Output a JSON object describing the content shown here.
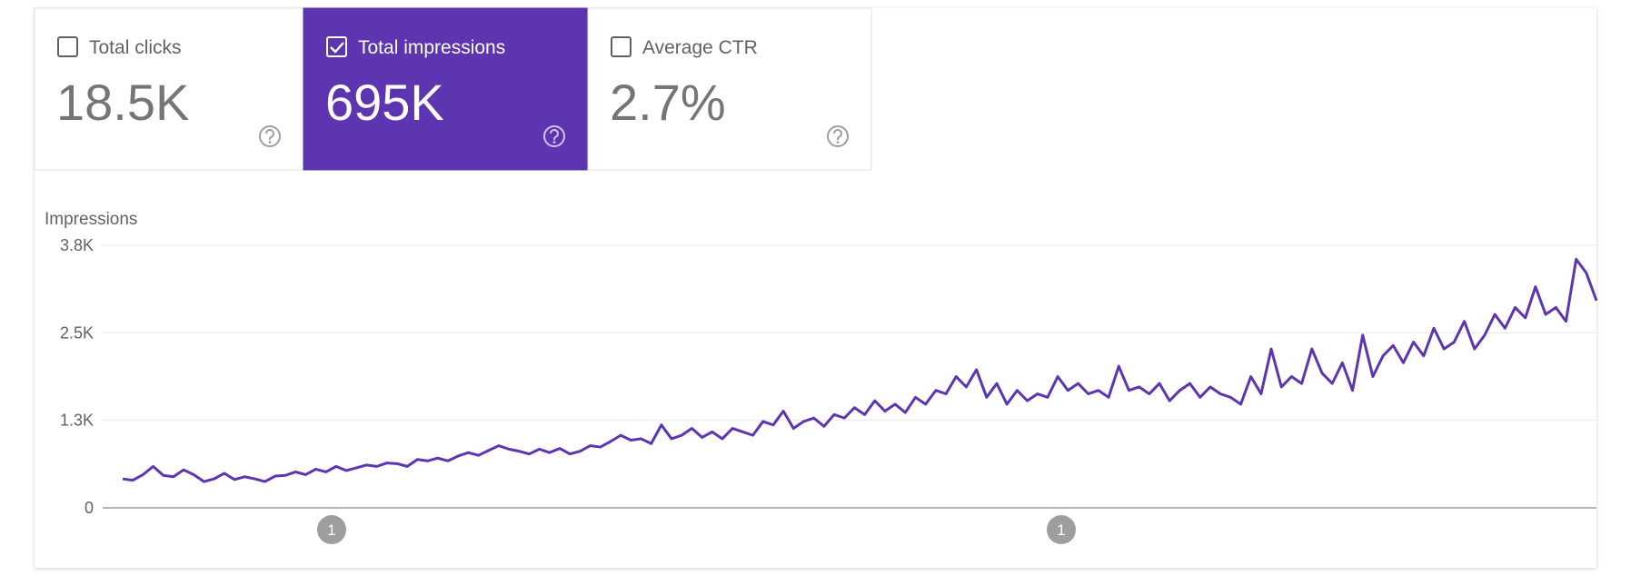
{
  "cards": [
    {
      "label": "Total clicks",
      "value": "18.5K",
      "selected": false
    },
    {
      "label": "Total impressions",
      "value": "695K",
      "selected": true
    },
    {
      "label": "Average CTR",
      "value": "2.7%",
      "selected": false
    }
  ],
  "chart_data": {
    "type": "line",
    "y_label": "Impressions",
    "series": [
      {
        "name": "Impressions",
        "color": "#5e35b1",
        "values": [
          420,
          400,
          480,
          600,
          470,
          450,
          550,
          480,
          380,
          420,
          500,
          410,
          450,
          420,
          380,
          460,
          470,
          520,
          480,
          560,
          520,
          600,
          540,
          580,
          620,
          600,
          650,
          640,
          600,
          700,
          680,
          720,
          680,
          750,
          800,
          760,
          830,
          900,
          850,
          820,
          780,
          850,
          800,
          860,
          780,
          820,
          900,
          880,
          960,
          1050,
          980,
          1000,
          930,
          1200,
          1000,
          1050,
          1150,
          1020,
          1100,
          1000,
          1150,
          1100,
          1050,
          1250,
          1200,
          1400,
          1150,
          1250,
          1300,
          1180,
          1350,
          1300,
          1450,
          1350,
          1550,
          1400,
          1500,
          1380,
          1600,
          1500,
          1700,
          1650,
          1900,
          1750,
          2000,
          1600,
          1800,
          1500,
          1700,
          1550,
          1650,
          1600,
          1900,
          1700,
          1800,
          1650,
          1700,
          1600,
          2050,
          1700,
          1750,
          1650,
          1800,
          1550,
          1700,
          1800,
          1600,
          1750,
          1650,
          1600,
          1500,
          1900,
          1650,
          2300,
          1750,
          1900,
          1800,
          2300,
          1950,
          1800,
          2100,
          1700,
          2500,
          1900,
          2200,
          2350,
          2100,
          2400,
          2200,
          2600,
          2300,
          2400,
          2700,
          2300,
          2500,
          2800,
          2600,
          2900,
          2750,
          3200,
          2800,
          2900,
          2700,
          3600,
          3400,
          3000
        ]
      }
    ],
    "ylim": [
      0,
      3800
    ],
    "yticks": [
      0,
      {
        "value": 1266.67,
        "label": "1.3K"
      },
      {
        "value": 2533.33,
        "label": "2.5K"
      },
      {
        "value": 3800,
        "label": "3.8K"
      }
    ],
    "grid": true,
    "annotations": [
      {
        "label": "1"
      },
      {
        "label": "1"
      }
    ]
  }
}
